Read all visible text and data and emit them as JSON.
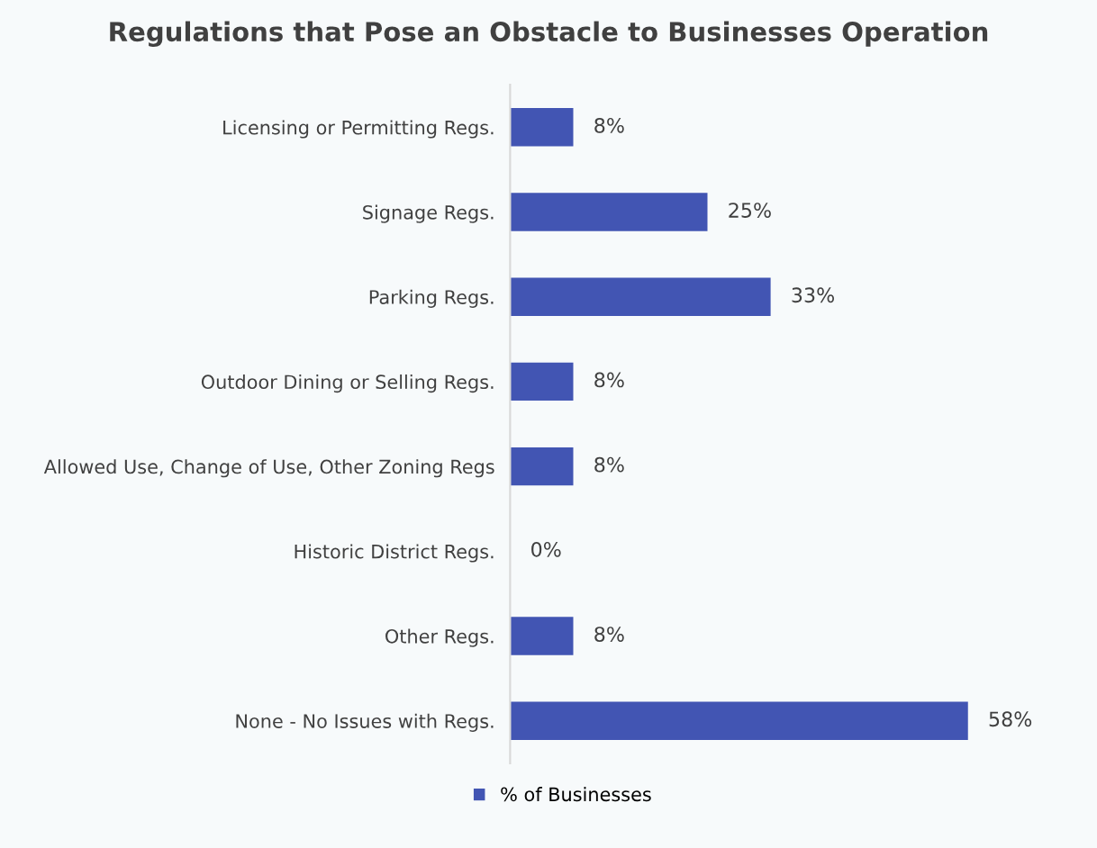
{
  "chart_data": {
    "type": "bar",
    "orientation": "horizontal",
    "title": "Regulations that Pose an Obstacle to Businesses Operation",
    "categories": [
      "Licensing or Permitting Regs.",
      "Signage Regs.",
      "Parking Regs.",
      "Outdoor Dining or Selling Regs.",
      "Allowed Use, Change of Use, Other Zoning Regs",
      "Historic District Regs.",
      "Other Regs.",
      "None - No Issues with Regs."
    ],
    "series": [
      {
        "name": "% of Businesses",
        "color": "#4255b3",
        "values": [
          8,
          25,
          33,
          8,
          8,
          0,
          8,
          58
        ],
        "value_labels": [
          "8%",
          "25%",
          "33%",
          "8%",
          "8%",
          "0%",
          "8%",
          "58%"
        ]
      }
    ],
    "legend": "bottom",
    "grid": false
  }
}
